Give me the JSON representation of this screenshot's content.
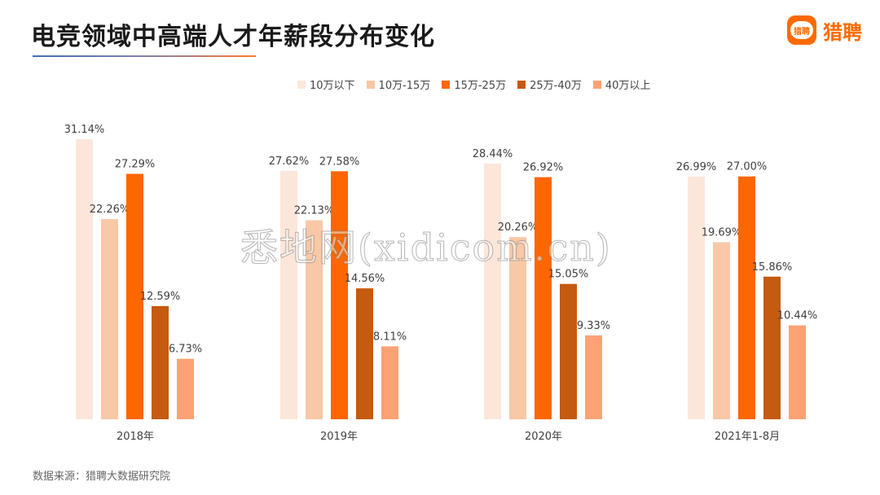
{
  "title": "电竞领域中高端人才年薪段分布变化",
  "brand": {
    "logo_text": "猎聘",
    "name": "猎聘"
  },
  "source": "数据来源：猎聘大数据研究院",
  "watermark": "悉地网(xidicom.cn)",
  "chart_data": {
    "type": "bar",
    "categories": [
      "2018年",
      "2019年",
      "2020年",
      "2021年1-8月"
    ],
    "series": [
      {
        "name": "10万以下",
        "color": "#fce6da",
        "values": [
          31.14,
          27.62,
          28.44,
          26.99
        ],
        "labels": [
          "31.14%",
          "27.62%",
          "28.44%",
          "26.99%"
        ]
      },
      {
        "name": "10万-15万",
        "color": "#f8c8a7",
        "values": [
          22.26,
          22.13,
          20.26,
          19.69
        ],
        "labels": [
          "22.26%",
          "22.13%",
          "20.26%",
          "19.69%"
        ]
      },
      {
        "name": "15万-25万",
        "color": "#fe6600",
        "values": [
          27.29,
          27.58,
          26.92,
          27.0
        ],
        "labels": [
          "27.29%",
          "27.58%",
          "26.92%",
          "27.00%"
        ]
      },
      {
        "name": "25万-40万",
        "color": "#c55a11",
        "values": [
          12.59,
          14.56,
          15.05,
          15.86
        ],
        "labels": [
          "12.59%",
          "14.56%",
          "15.05%",
          "15.86%"
        ]
      },
      {
        "name": "40万以上",
        "color": "#fca274",
        "values": [
          6.73,
          8.11,
          9.33,
          10.44
        ],
        "labels": [
          "6.73%",
          "8.11%",
          "9.33%",
          "10.44%"
        ]
      }
    ],
    "ylim": [
      0,
      31.14
    ],
    "grid": false,
    "legend_position": "top"
  }
}
